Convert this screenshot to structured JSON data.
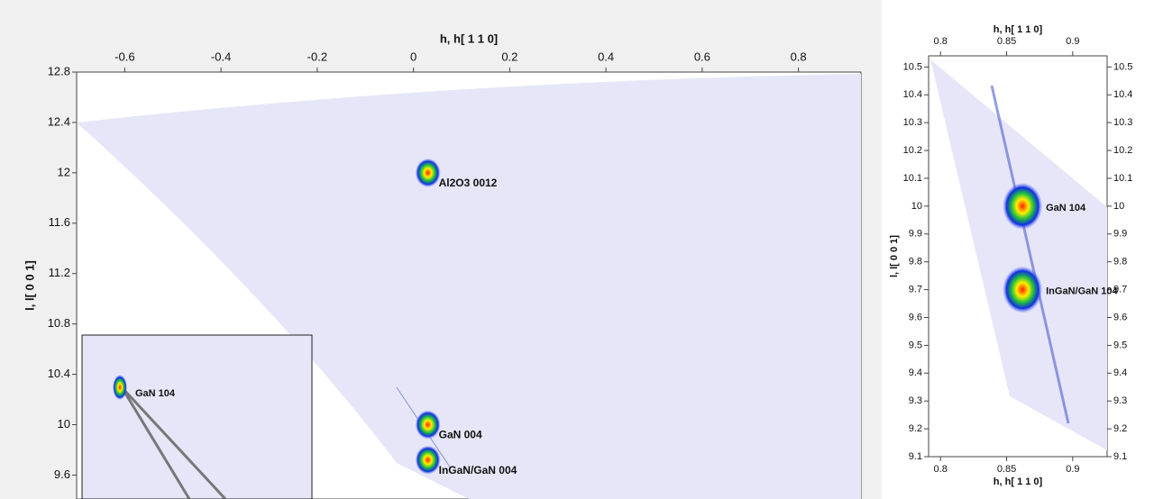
{
  "chart_data": [
    {
      "type": "map",
      "xlabel": "h, h[ 1 1 0]",
      "ylabel": "l, l[ 0 0 1]",
      "xlim": [
        -0.7,
        0.93
      ],
      "ylim": [
        9.41,
        12.8
      ],
      "xticks": [
        -0.6,
        -0.4,
        -0.2,
        0,
        0.2,
        0.4,
        0.6,
        0.8
      ],
      "yticks": [
        9.6,
        10,
        10.4,
        10.8,
        11.2,
        11.6,
        12,
        12.4,
        12.8
      ],
      "peaks": [
        {
          "label": "Al2O3 0012",
          "x": 0.03,
          "y": 12.0
        },
        {
          "label": "GaN 004",
          "x": 0.03,
          "y": 10.0
        },
        {
          "label": "InGaN/GaN 004",
          "x": 0.03,
          "y": 9.72
        }
      ],
      "inset": {
        "label": "GaN 104"
      }
    },
    {
      "type": "map",
      "xlabel": "h, h[ 1 1 0]",
      "ylabel": "l, l[ 0 0 1]",
      "xlim": [
        0.791,
        0.926
      ],
      "ylim": [
        9.1,
        10.54
      ],
      "xticks": [
        0.8,
        0.85,
        0.9
      ],
      "yticks": [
        9.1,
        9.2,
        9.3,
        9.4,
        9.5,
        9.6,
        9.7,
        9.8,
        9.9,
        10,
        10.1,
        10.2,
        10.3,
        10.4,
        10.5
      ],
      "peaks": [
        {
          "label": "GaN 104",
          "x": 0.862,
          "y": 10.0
        },
        {
          "label": "InGaN/GaN 104",
          "x": 0.862,
          "y": 9.7
        }
      ]
    }
  ]
}
